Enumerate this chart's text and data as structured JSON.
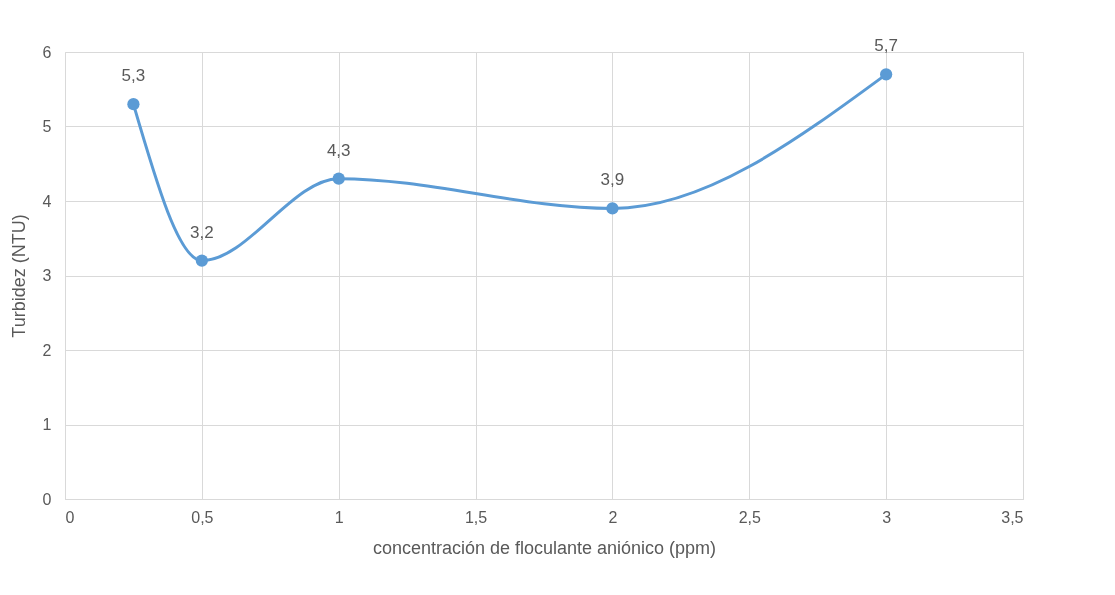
{
  "chart_data": {
    "type": "line",
    "xlabel": "concentración de floculante aniónico (ppm)",
    "ylabel": "Turbidez (NTU)",
    "x": [
      0.25,
      0.5,
      1,
      2,
      3
    ],
    "series": [
      {
        "color": "#5b9bd5",
        "values": [
          5.3,
          3.2,
          4.3,
          3.9,
          5.7
        ],
        "value_labels": [
          "5,3",
          "3,2",
          "4,3",
          "3,9",
          "5,7"
        ]
      }
    ],
    "xlim": [
      0,
      3.5
    ],
    "xticks": [
      0,
      {
        "value": 0.5,
        "label": "0,5"
      },
      1,
      {
        "value": 1.5,
        "label": "1,5"
      },
      2,
      {
        "value": 2.5,
        "label": "2,5"
      },
      3,
      {
        "value": 3.5,
        "label": "3,5"
      }
    ],
    "ylim": [
      0,
      6
    ],
    "yticks": [
      0,
      1,
      2,
      3,
      4,
      5,
      6
    ],
    "grid": true,
    "marker": "circle",
    "line_style": "solid"
  }
}
